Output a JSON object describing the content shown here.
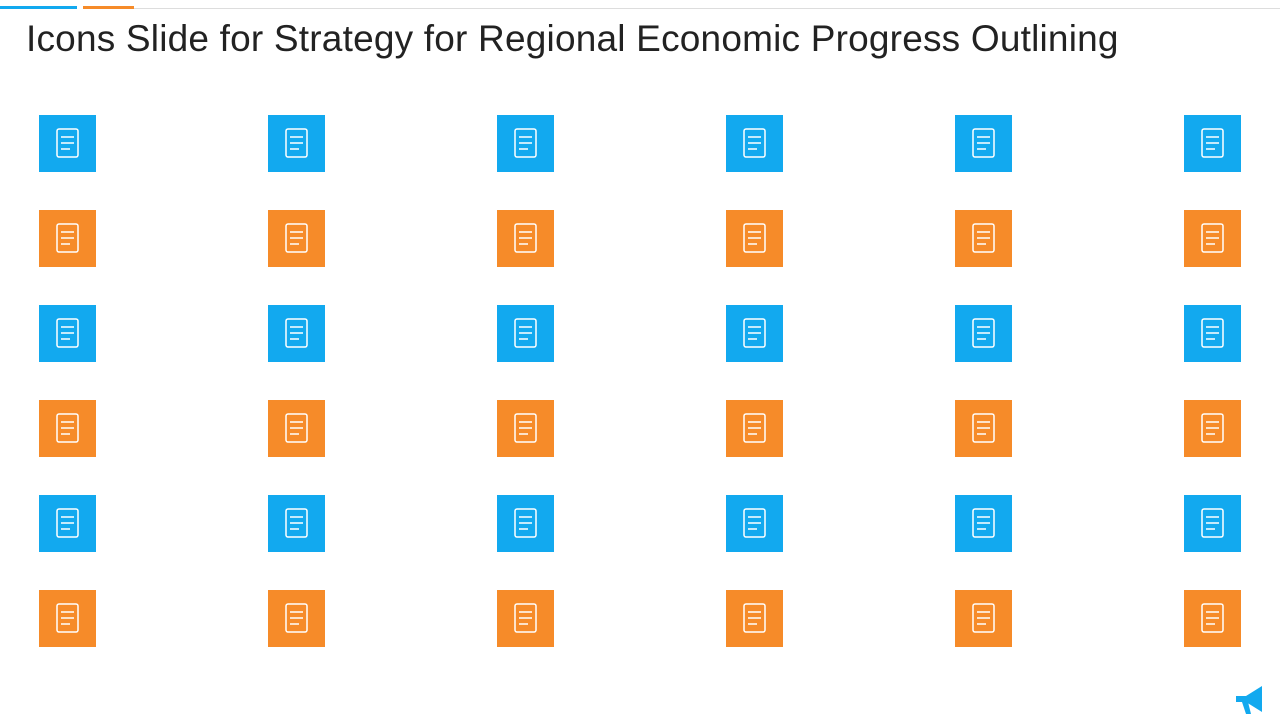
{
  "title": "Icons Slide for Strategy for Regional Economic Progress Outlining"
}
